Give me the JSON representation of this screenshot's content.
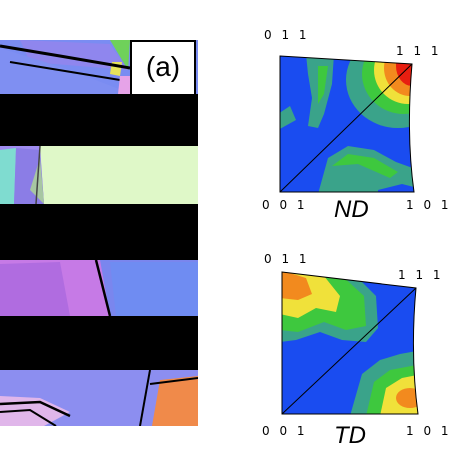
{
  "panel_label": "(a)",
  "colors": {
    "low": "#1a4cf0",
    "teal": "#3aa38a",
    "green": "#3ec83e",
    "yellow": "#f0e13a",
    "orange": "#f28a1e",
    "red": "#e81e10"
  },
  "pole_figures": [
    {
      "name": "ND",
      "label_top_left": "011",
      "label_top_right": "111",
      "label_bottom_left": "001",
      "label_bottom_right": "101"
    },
    {
      "name": "TD",
      "label_top_left": "011",
      "label_top_right": "111",
      "label_bottom_left": "001",
      "label_bottom_right": "101"
    }
  ]
}
